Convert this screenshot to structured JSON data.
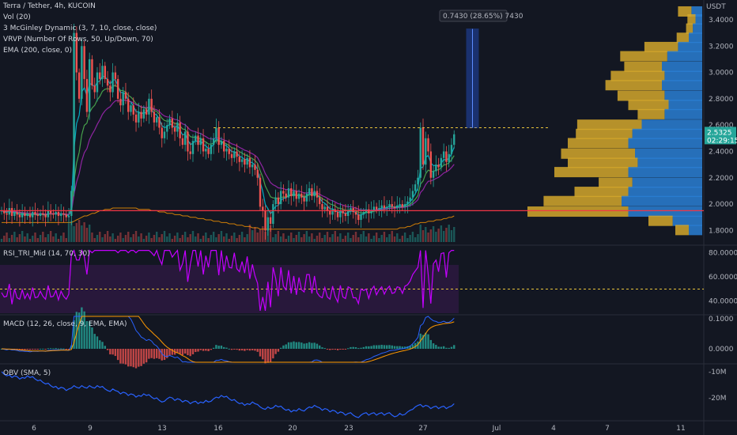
{
  "header": {
    "symbol": "Terra / Tether, 4h, KUCOIN",
    "ind1": "Vol (20)",
    "ind2": "3 McGinley Dynamic (3, 7, 10, close, close)",
    "ind3": "VRVP (Number Of Rows, 50, Up/Down, 70)",
    "ind4": "EMA (200, close, 0)"
  },
  "price_axis": {
    "currency": "USDT",
    "ticks": [
      "3.4000",
      "3.2000",
      "3.0000",
      "2.8000",
      "2.6000",
      "2.4000",
      "2.2000",
      "2.0000",
      "1.8000"
    ],
    "last_price": "2.5325",
    "countdown": "02:29:15"
  },
  "measure": {
    "label": "0.7430 (28.65%) 7430"
  },
  "rsi": {
    "title": "RSI_TRI_Mid (14, 70, 30)",
    "ticks": [
      "80.0000",
      "60.0000",
      "40.0000"
    ]
  },
  "macd": {
    "title": "MACD (12, 26, close, 9, EMA, EMA)",
    "ticks": [
      "0.1000",
      "0.0000"
    ]
  },
  "obv": {
    "title": "OBV (SMA, 5)",
    "ticks": [
      "-10M",
      "-20M"
    ]
  },
  "time_axis": {
    "labels": [
      "6",
      "9",
      "13",
      "16",
      "20",
      "23",
      "27",
      "Jul",
      "4",
      "7",
      "11"
    ]
  },
  "colors": {
    "up": "#26a69a",
    "down": "#ef5350",
    "bg": "#131722",
    "rsi_line": "#c400ff",
    "obv_line": "#2962ff",
    "ema200": "#ff9800",
    "hline": "#f23645",
    "vp_up": "#2a7fd4",
    "vp_down": "#d4a72c"
  },
  "chart_data": {
    "type": "candlestick",
    "title": "Terra / Tether, 4h, KUCOIN",
    "y_range": [
      1.7,
      3.55
    ],
    "closes": [
      1.95,
      1.93,
      1.92,
      1.97,
      1.91,
      1.94,
      1.92,
      1.9,
      1.93,
      1.91,
      1.92,
      1.9,
      1.94,
      1.92,
      1.91,
      1.93,
      1.92,
      1.9,
      1.95,
      1.93,
      1.92,
      1.94,
      1.91,
      1.93,
      1.92,
      1.9,
      1.91,
      2.1,
      3.3,
      3.0,
      2.8,
      3.2,
      2.95,
      2.7,
      3.1,
      2.9,
      2.85,
      3.0,
      2.95,
      3.05,
      2.95,
      2.9,
      2.85,
      3.0,
      2.95,
      2.8,
      2.75,
      2.85,
      2.8,
      2.7,
      2.75,
      2.68,
      2.62,
      2.7,
      2.65,
      2.72,
      2.68,
      2.8,
      2.7,
      2.62,
      2.66,
      2.58,
      2.5,
      2.55,
      2.6,
      2.65,
      2.58,
      2.55,
      2.62,
      2.5,
      2.45,
      2.55,
      2.4,
      2.38,
      2.48,
      2.52,
      2.45,
      2.5,
      2.4,
      2.42,
      2.38,
      2.45,
      2.5,
      2.58,
      2.45,
      2.48,
      2.4,
      2.42,
      2.38,
      2.35,
      2.4,
      2.36,
      2.32,
      2.34,
      2.3,
      2.35,
      2.28,
      2.3,
      2.26,
      2.2,
      1.98,
      1.95,
      1.8,
      1.9,
      1.85,
      2.0,
      2.05,
      2.0,
      2.1,
      2.08,
      2.05,
      2.12,
      2.06,
      2.1,
      2.04,
      2.08,
      2.05,
      2.02,
      2.08,
      2.12,
      2.06,
      2.1,
      2.05,
      2.0,
      1.96,
      1.98,
      1.95,
      1.92,
      1.96,
      1.94,
      1.9,
      1.95,
      1.93,
      1.91,
      1.95,
      1.97,
      1.94,
      1.92,
      1.88,
      1.92,
      1.94,
      1.96,
      1.93,
      1.95,
      1.98,
      1.96,
      1.97,
      1.99,
      1.97,
      1.98,
      2.0,
      1.98,
      1.97,
      1.99,
      2.0,
      1.98,
      2.0,
      2.02,
      2.05,
      2.1,
      2.15,
      2.2,
      2.58,
      2.3,
      2.5,
      2.4,
      2.2,
      2.25,
      2.3,
      2.28,
      2.35,
      2.4,
      2.32,
      2.38,
      2.45,
      2.53
    ],
    "ema200": [
      1.86,
      1.86,
      1.86,
      1.86,
      1.86,
      1.86,
      1.86,
      1.86,
      1.86,
      1.86,
      1.86,
      1.86,
      1.86,
      1.86,
      1.86,
      1.86,
      1.86,
      1.86,
      1.86,
      1.86,
      1.86,
      1.86,
      1.86,
      1.86,
      1.86,
      1.86,
      1.86,
      1.86,
      1.87,
      1.88,
      1.89,
      1.9,
      1.91,
      1.91,
      1.92,
      1.93,
      1.93,
      1.94,
      1.95,
      1.95,
      1.96,
      1.96,
      1.96,
      1.97,
      1.97,
      1.97,
      1.97,
      1.97,
      1.97,
      1.97,
      1.97,
      1.97,
      1.97,
      1.96,
      1.96,
      1.96,
      1.96,
      1.96,
      1.95,
      1.95,
      1.95,
      1.94,
      1.94,
      1.94,
      1.93,
      1.93,
      1.93,
      1.92,
      1.92,
      1.92,
      1.91,
      1.91,
      1.91,
      1.9,
      1.9,
      1.9,
      1.89,
      1.89,
      1.89,
      1.88,
      1.88,
      1.88,
      1.87,
      1.87,
      1.87,
      1.86,
      1.86,
      1.86,
      1.85,
      1.85,
      1.85,
      1.84,
      1.84,
      1.84,
      1.83,
      1.83,
      1.83,
      1.82,
      1.82,
      1.82,
      1.81,
      1.81,
      1.81,
      1.81,
      1.81,
      1.81,
      1.81,
      1.81,
      1.81,
      1.81,
      1.81,
      1.81,
      1.81,
      1.81,
      1.81,
      1.81,
      1.81,
      1.81,
      1.81,
      1.81,
      1.81,
      1.81,
      1.81,
      1.81,
      1.81,
      1.81,
      1.81,
      1.81,
      1.81,
      1.81,
      1.81,
      1.81,
      1.81,
      1.81,
      1.81,
      1.81,
      1.81,
      1.81,
      1.81,
      1.81,
      1.81,
      1.81,
      1.81,
      1.81,
      1.81,
      1.81,
      1.81,
      1.81,
      1.81,
      1.81,
      1.81,
      1.81,
      1.81,
      1.81,
      1.82,
      1.82,
      1.82,
      1.83,
      1.83,
      1.84,
      1.85,
      1.85,
      1.86,
      1.86,
      1.86,
      1.87,
      1.87,
      1.87,
      1.88,
      1.88,
      1.88,
      1.89,
      1.89,
      1.9,
      1.9,
      1.91
    ],
    "resistance": 2.58,
    "support": 1.95,
    "measure_target": 3.33,
    "volume_profile": {
      "prices": [
        3.46,
        3.4,
        3.33,
        3.26,
        3.19,
        3.12,
        3.04,
        2.97,
        2.9,
        2.82,
        2.75,
        2.68,
        2.6,
        2.53,
        2.46,
        2.38,
        2.31,
        2.24,
        2.16,
        2.09,
        2.02,
        1.94,
        1.87,
        1.8
      ],
      "up": [
        0.08,
        0.05,
        0.07,
        0.1,
        0.18,
        0.26,
        0.3,
        0.28,
        0.3,
        0.28,
        0.25,
        0.28,
        0.45,
        0.52,
        0.55,
        0.5,
        0.48,
        0.55,
        0.52,
        0.55,
        0.6,
        0.55,
        0.22,
        0.1
      ],
      "down": [
        0.1,
        0.06,
        0.05,
        0.09,
        0.25,
        0.35,
        0.28,
        0.4,
        0.42,
        0.35,
        0.3,
        0.2,
        0.48,
        0.42,
        0.45,
        0.55,
        0.52,
        0.55,
        0.25,
        0.4,
        0.58,
        0.75,
        0.18,
        0.1
      ]
    }
  }
}
